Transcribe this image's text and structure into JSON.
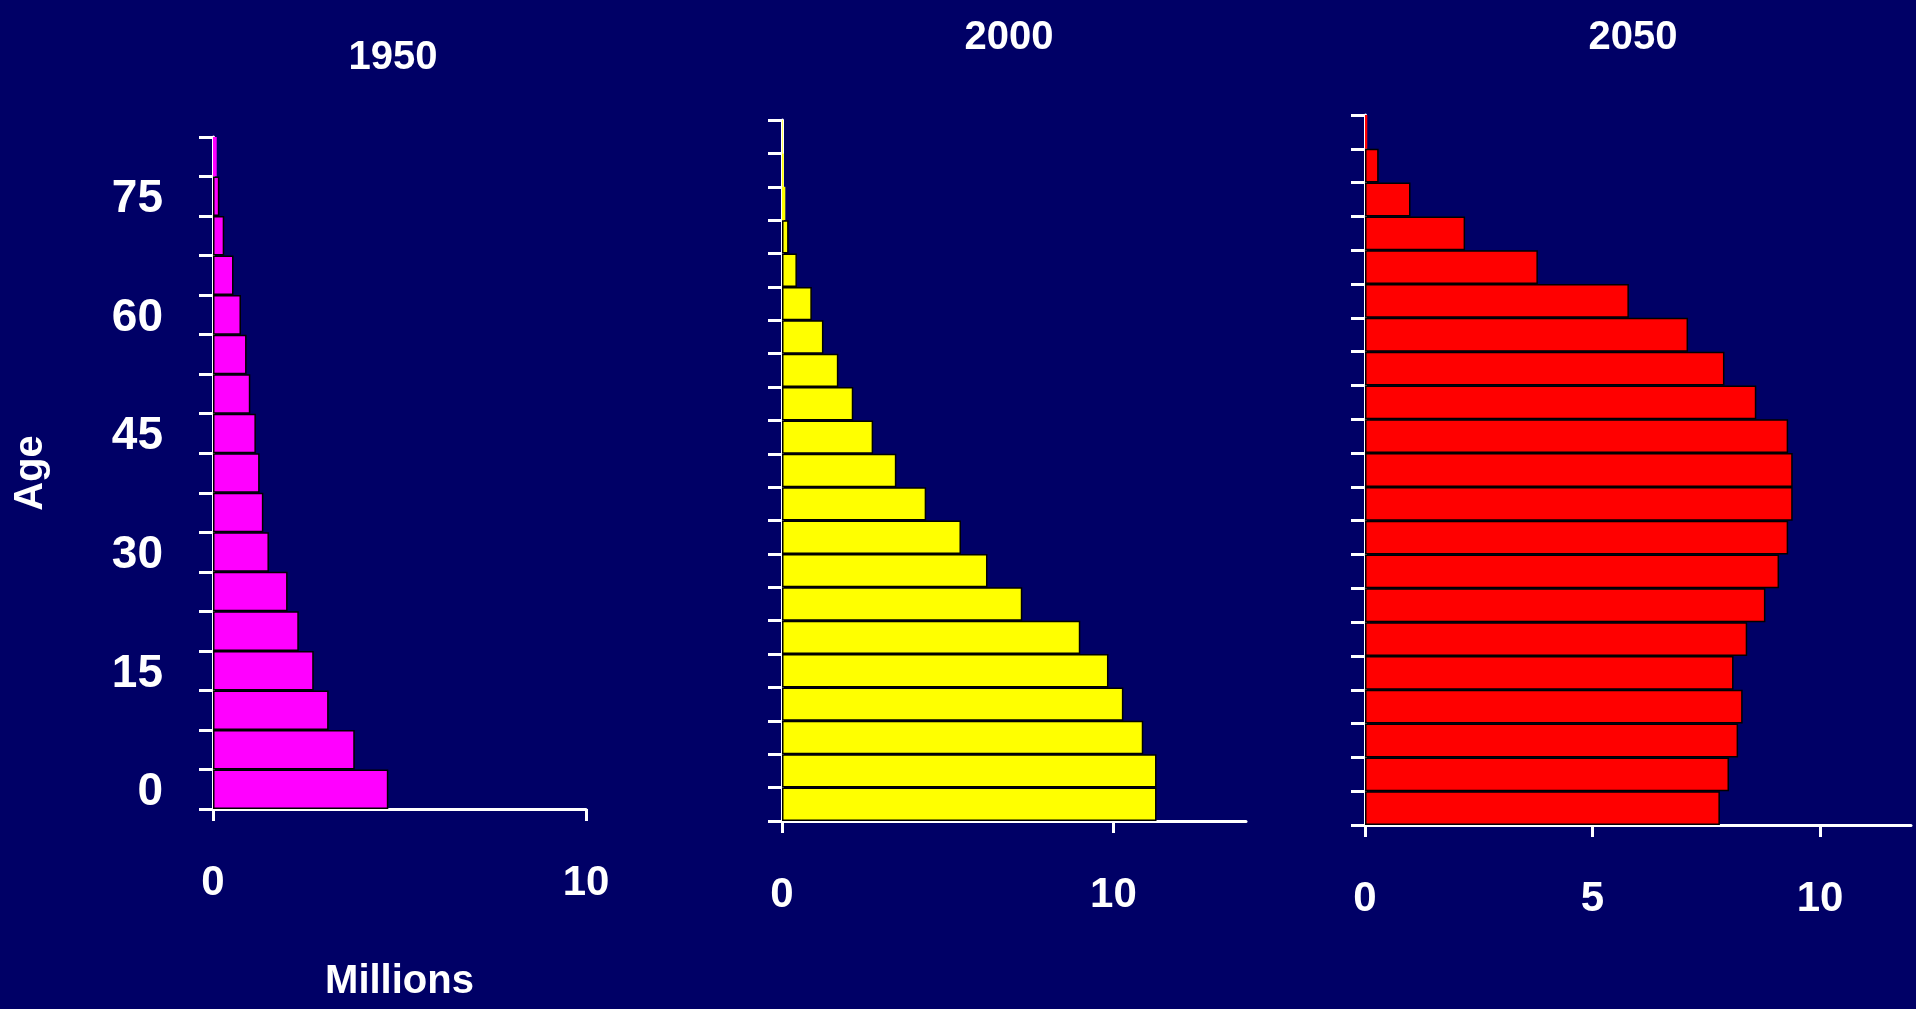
{
  "chart_data": [
    {
      "type": "bar",
      "orientation": "horizontal",
      "title": "1950",
      "xlabel": "Millions",
      "ylabel": "Age",
      "categories": [
        null,
        "75",
        null,
        null,
        "60",
        null,
        null,
        "45",
        null,
        null,
        "30",
        null,
        null,
        "15",
        null,
        null,
        "0"
      ],
      "values": [
        0.1,
        0.17,
        0.3,
        0.55,
        0.75,
        0.9,
        1.0,
        1.15,
        1.25,
        1.35,
        1.5,
        2.0,
        2.3,
        2.7,
        3.1,
        3.8,
        4.7
      ],
      "color": "#ff00ff",
      "xlim": [
        0,
        10
      ],
      "xticks": [
        0,
        10
      ]
    },
    {
      "type": "bar",
      "orientation": "horizontal",
      "title": "2000",
      "categories": [
        null,
        null,
        null,
        null,
        null,
        null,
        null,
        null,
        null,
        null,
        null,
        null,
        null,
        null,
        null,
        null,
        null,
        null,
        null,
        null,
        null
      ],
      "values": [
        0.02,
        0.05,
        0.1,
        0.2,
        0.45,
        0.9,
        1.25,
        1.7,
        2.15,
        2.75,
        3.45,
        4.35,
        5.4,
        6.2,
        7.25,
        9.0,
        9.85,
        10.3,
        10.9,
        11.3,
        11.3
      ],
      "color": "#ffff00",
      "xlim": [
        0,
        14
      ],
      "xticks": [
        0,
        10
      ],
      "tick_labels": "x"
    },
    {
      "type": "bar",
      "orientation": "horizontal",
      "title": "2050",
      "categories": [
        null,
        null,
        null,
        null,
        null,
        null,
        null,
        null,
        null,
        null,
        null,
        null,
        null,
        null,
        null,
        null,
        null,
        null,
        null,
        null,
        null
      ],
      "values": [
        0.05,
        0.3,
        1.0,
        2.2,
        3.8,
        5.8,
        7.1,
        7.9,
        8.6,
        9.3,
        9.4,
        9.4,
        9.3,
        9.1,
        8.8,
        8.4,
        8.1,
        8.3,
        8.2,
        8.0,
        7.8
      ],
      "color": "#ff0000",
      "xlim": [
        0,
        12
      ],
      "xticks": [
        0,
        5,
        10
      ],
      "tick_labels": "x"
    }
  ]
}
